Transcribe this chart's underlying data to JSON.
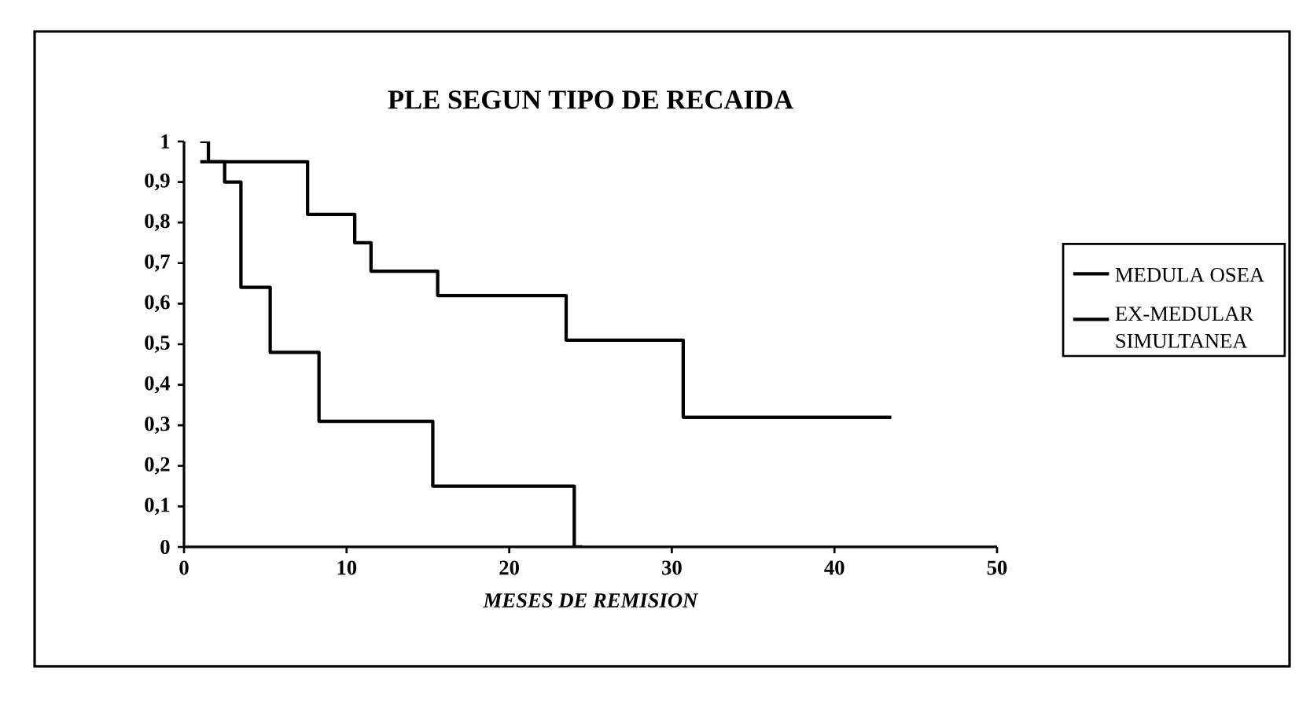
{
  "chart_data": {
    "type": "step",
    "title": "PLE SEGUN TIPO DE RECAIDA",
    "xlabel": "MESES DE REMISION",
    "xlim": [
      0,
      50
    ],
    "xticks": [
      0,
      10,
      20,
      30,
      40,
      50
    ],
    "ylim": [
      0,
      1
    ],
    "yticks": [
      {
        "value": 0,
        "label": "0"
      },
      {
        "value": 0.1,
        "label": "0,1"
      },
      {
        "value": 0.2,
        "label": "0,2"
      },
      {
        "value": 0.3,
        "label": "0,3"
      },
      {
        "value": 0.4,
        "label": "0,4"
      },
      {
        "value": 0.5,
        "label": "0,5"
      },
      {
        "value": 0.6,
        "label": "0,6"
      },
      {
        "value": 0.7,
        "label": "0,7"
      },
      {
        "value": 0.8,
        "label": "0,8"
      },
      {
        "value": 0.9,
        "label": "0,9"
      },
      {
        "value": 1,
        "label": "1"
      }
    ],
    "series": [
      {
        "name": "MEDULA OSEA",
        "color": "#000000",
        "x": [
          1,
          1.5,
          2.5,
          3.5,
          5.3,
          8.3,
          15.3,
          24,
          24.5
        ],
        "values": [
          1,
          0.95,
          0.9,
          0.64,
          0.48,
          0.31,
          0.15,
          0,
          0
        ]
      },
      {
        "name": "EX-MEDULAR SIMULTANEA",
        "color": "#000000",
        "x": [
          1,
          7.6,
          10.5,
          11.5,
          15.6,
          23.5,
          30.7,
          43.5
        ],
        "values": [
          0.95,
          0.82,
          0.75,
          0.68,
          0.62,
          0.51,
          0.32,
          0.32
        ]
      }
    ],
    "legend": "right",
    "grid": false,
    "marker": "none",
    "line_style": "solid"
  }
}
